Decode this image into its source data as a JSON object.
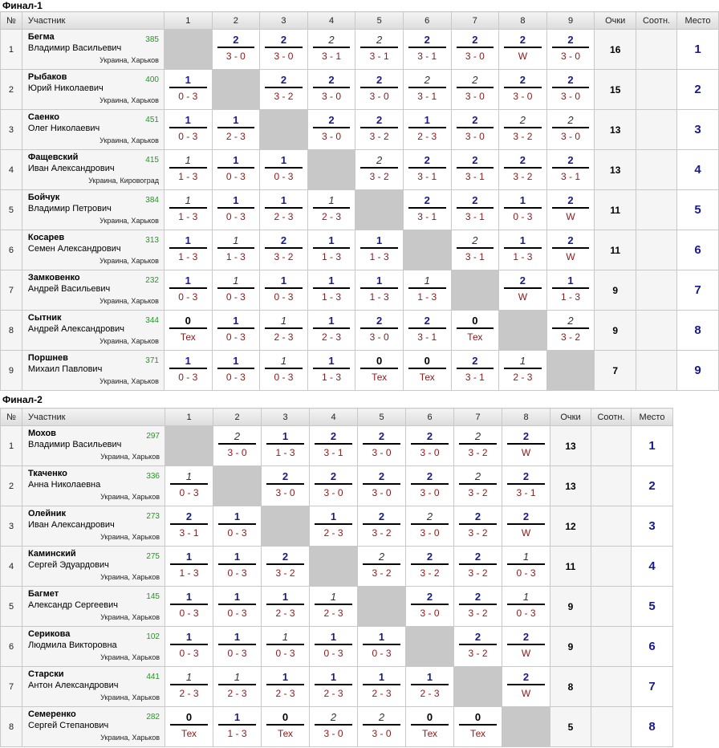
{
  "tables": [
    {
      "title": "Финал-1",
      "headers": {
        "num": "№",
        "participant": "Участник",
        "points": "Очки",
        "ratio": "Соотн.",
        "place": "Место"
      },
      "columns": [
        "1",
        "2",
        "3",
        "4",
        "5",
        "6",
        "7",
        "8",
        "9"
      ],
      "players": [
        {
          "num": "1",
          "last": "Бегма",
          "first": "Владимир Васильевич",
          "rating": "385",
          "city": "Украина, Харьков",
          "points": "16",
          "place": "1",
          "results": [
            null,
            [
              "2",
              "3 - 0",
              0
            ],
            [
              "2",
              "3 - 0",
              0
            ],
            [
              "2",
              "3 - 1",
              1
            ],
            [
              "2",
              "3 - 1",
              1
            ],
            [
              "2",
              "3 - 1",
              0
            ],
            [
              "2",
              "3 - 0",
              0
            ],
            [
              "2",
              "W",
              0
            ],
            [
              "2",
              "3 - 0",
              0
            ]
          ]
        },
        {
          "num": "2",
          "last": "Рыбаков",
          "first": "Юрий Николаевич",
          "rating": "400",
          "city": "Украина, Харьков",
          "points": "15",
          "place": "2",
          "results": [
            [
              "1",
              "0 - 3",
              0
            ],
            null,
            [
              "2",
              "3 - 2",
              0
            ],
            [
              "2",
              "3 - 0",
              0
            ],
            [
              "2",
              "3 - 0",
              0
            ],
            [
              "2",
              "3 - 1",
              1
            ],
            [
              "2",
              "3 - 0",
              1
            ],
            [
              "2",
              "3 - 0",
              0
            ],
            [
              "2",
              "3 - 0",
              0
            ]
          ]
        },
        {
          "num": "3",
          "last": "Саенко",
          "first": "Олег Николаевич",
          "rating": "451",
          "city": "Украина, Харьков",
          "points": "13",
          "place": "3",
          "results": [
            [
              "1",
              "0 - 3",
              0
            ],
            [
              "1",
              "2 - 3",
              0
            ],
            null,
            [
              "2",
              "3 - 0",
              0
            ],
            [
              "2",
              "3 - 2",
              0
            ],
            [
              "1",
              "2 - 3",
              0
            ],
            [
              "2",
              "3 - 0",
              0
            ],
            [
              "2",
              "3 - 2",
              1
            ],
            [
              "2",
              "3 - 0",
              1
            ]
          ]
        },
        {
          "num": "4",
          "last": "Фащевский",
          "first": "Иван Александрович",
          "rating": "415",
          "city": "Украина, Кировоград",
          "points": "13",
          "place": "4",
          "results": [
            [
              "1",
              "1 - 3",
              1
            ],
            [
              "1",
              "0 - 3",
              0
            ],
            [
              "1",
              "0 - 3",
              0
            ],
            null,
            [
              "2",
              "3 - 2",
              1
            ],
            [
              "2",
              "3 - 1",
              0
            ],
            [
              "2",
              "3 - 1",
              0
            ],
            [
              "2",
              "3 - 2",
              0
            ],
            [
              "2",
              "3 - 1",
              0
            ]
          ]
        },
        {
          "num": "5",
          "last": "Бойчук",
          "first": "Владимир Петрович",
          "rating": "384",
          "city": "Украина, Харьков",
          "points": "11",
          "place": "5",
          "results": [
            [
              "1",
              "1 - 3",
              1
            ],
            [
              "1",
              "0 - 3",
              0
            ],
            [
              "1",
              "2 - 3",
              0
            ],
            [
              "1",
              "2 - 3",
              1
            ],
            null,
            [
              "2",
              "3 - 1",
              0
            ],
            [
              "2",
              "3 - 1",
              0
            ],
            [
              "1",
              "0 - 3",
              0
            ],
            [
              "2",
              "W",
              0
            ]
          ]
        },
        {
          "num": "6",
          "last": "Косарев",
          "first": "Семен Александрович",
          "rating": "313",
          "city": "Украина, Харьков",
          "points": "11",
          "place": "6",
          "results": [
            [
              "1",
              "1 - 3",
              0
            ],
            [
              "1",
              "1 - 3",
              1
            ],
            [
              "2",
              "3 - 2",
              0
            ],
            [
              "1",
              "1 - 3",
              0
            ],
            [
              "1",
              "1 - 3",
              0
            ],
            null,
            [
              "2",
              "3 - 1",
              1
            ],
            [
              "1",
              "1 - 3",
              0
            ],
            [
              "2",
              "W",
              0
            ]
          ]
        },
        {
          "num": "7",
          "last": "Замковенко",
          "first": "Андрей Васильевич",
          "rating": "232",
          "city": "Украина, Харьков",
          "points": "9",
          "place": "7",
          "results": [
            [
              "1",
              "0 - 3",
              0
            ],
            [
              "1",
              "0 - 3",
              1
            ],
            [
              "1",
              "0 - 3",
              0
            ],
            [
              "1",
              "1 - 3",
              0
            ],
            [
              "1",
              "1 - 3",
              0
            ],
            [
              "1",
              "1 - 3",
              1
            ],
            null,
            [
              "2",
              "W",
              0
            ],
            [
              "1",
              "1 - 3",
              0
            ]
          ]
        },
        {
          "num": "8",
          "last": "Сытник",
          "first": "Андрей Александрович",
          "rating": "344",
          "city": "Украина, Харьков",
          "points": "9",
          "place": "8",
          "results": [
            [
              "0",
              "Тех",
              0
            ],
            [
              "1",
              "0 - 3",
              0
            ],
            [
              "1",
              "2 - 3",
              1
            ],
            [
              "1",
              "2 - 3",
              0
            ],
            [
              "2",
              "3 - 0",
              0
            ],
            [
              "2",
              "3 - 1",
              0
            ],
            [
              "0",
              "Тех",
              0
            ],
            null,
            [
              "2",
              "3 - 2",
              1
            ]
          ]
        },
        {
          "num": "9",
          "last": "Поршнев",
          "first": "Михаил Павлович",
          "rating": "371",
          "city": "Украина, Харьков",
          "points": "7",
          "place": "9",
          "results": [
            [
              "1",
              "0 - 3",
              0
            ],
            [
              "1",
              "0 - 3",
              0
            ],
            [
              "1",
              "0 - 3",
              1
            ],
            [
              "1",
              "1 - 3",
              0
            ],
            [
              "0",
              "Тех",
              0
            ],
            [
              "0",
              "Тех",
              0
            ],
            [
              "2",
              "3 - 1",
              0
            ],
            [
              "1",
              "2 - 3",
              1
            ],
            null
          ]
        }
      ]
    },
    {
      "title": "Финал-2",
      "headers": {
        "num": "№",
        "participant": "Участник",
        "points": "Очки",
        "ratio": "Соотн.",
        "place": "Место"
      },
      "columns": [
        "1",
        "2",
        "3",
        "4",
        "5",
        "6",
        "7",
        "8"
      ],
      "players": [
        {
          "num": "1",
          "last": "Мохов",
          "first": "Владимир Васильевич",
          "rating": "297",
          "city": "Украина, Харьков",
          "points": "13",
          "place": "1",
          "results": [
            null,
            [
              "2",
              "3 - 0",
              1
            ],
            [
              "1",
              "1 - 3",
              0
            ],
            [
              "2",
              "3 - 1",
              0
            ],
            [
              "2",
              "3 - 0",
              0
            ],
            [
              "2",
              "3 - 0",
              0
            ],
            [
              "2",
              "3 - 2",
              1
            ],
            [
              "2",
              "W",
              0
            ]
          ]
        },
        {
          "num": "2",
          "last": "Ткаченко",
          "first": "Анна Николаевна",
          "rating": "336",
          "city": "Украина, Харьков",
          "points": "13",
          "place": "2",
          "results": [
            [
              "1",
              "0 - 3",
              1
            ],
            null,
            [
              "2",
              "3 - 0",
              0
            ],
            [
              "2",
              "3 - 0",
              0
            ],
            [
              "2",
              "3 - 0",
              0
            ],
            [
              "2",
              "3 - 0",
              0
            ],
            [
              "2",
              "3 - 2",
              1
            ],
            [
              "2",
              "3 - 1",
              0
            ]
          ]
        },
        {
          "num": "3",
          "last": "Олейник",
          "first": "Иван Александрович",
          "rating": "273",
          "city": "Украина, Харьков",
          "points": "12",
          "place": "3",
          "results": [
            [
              "2",
              "3 - 1",
              0
            ],
            [
              "1",
              "0 - 3",
              0
            ],
            null,
            [
              "1",
              "2 - 3",
              0
            ],
            [
              "2",
              "3 - 2",
              0
            ],
            [
              "2",
              "3 - 0",
              1
            ],
            [
              "2",
              "3 - 2",
              0
            ],
            [
              "2",
              "W",
              0
            ]
          ]
        },
        {
          "num": "4",
          "last": "Каминский",
          "first": "Сергей Эдуардович",
          "rating": "275",
          "city": "Украина, Харьков",
          "points": "11",
          "place": "4",
          "results": [
            [
              "1",
              "1 - 3",
              0
            ],
            [
              "1",
              "0 - 3",
              0
            ],
            [
              "2",
              "3 - 2",
              0
            ],
            null,
            [
              "2",
              "3 - 2",
              1
            ],
            [
              "2",
              "3 - 2",
              0
            ],
            [
              "2",
              "3 - 2",
              0
            ],
            [
              "1",
              "0 - 3",
              1
            ]
          ]
        },
        {
          "num": "5",
          "last": "Багмет",
          "first": "Александр Сергеевич",
          "rating": "145",
          "city": "Украина, Харьков",
          "points": "9",
          "place": "5",
          "results": [
            [
              "1",
              "0 - 3",
              0
            ],
            [
              "1",
              "0 - 3",
              0
            ],
            [
              "1",
              "2 - 3",
              0
            ],
            [
              "1",
              "2 - 3",
              1
            ],
            null,
            [
              "2",
              "3 - 0",
              0
            ],
            [
              "2",
              "3 - 2",
              0
            ],
            [
              "1",
              "0 - 3",
              1
            ]
          ]
        },
        {
          "num": "6",
          "last": "Серикова",
          "first": "Людмила Викторовна",
          "rating": "102",
          "city": "Украина, Харьков",
          "points": "9",
          "place": "6",
          "results": [
            [
              "1",
              "0 - 3",
              0
            ],
            [
              "1",
              "0 - 3",
              0
            ],
            [
              "1",
              "0 - 3",
              1
            ],
            [
              "1",
              "0 - 3",
              0
            ],
            [
              "1",
              "0 - 3",
              0
            ],
            null,
            [
              "2",
              "3 - 2",
              0
            ],
            [
              "2",
              "W",
              0
            ]
          ]
        },
        {
          "num": "7",
          "last": "Старски",
          "first": "Антон Александрович",
          "rating": "441",
          "city": "Украина, Харьков",
          "points": "8",
          "place": "7",
          "results": [
            [
              "1",
              "2 - 3",
              1
            ],
            [
              "1",
              "2 - 3",
              1
            ],
            [
              "1",
              "2 - 3",
              0
            ],
            [
              "1",
              "2 - 3",
              0
            ],
            [
              "1",
              "2 - 3",
              0
            ],
            [
              "1",
              "2 - 3",
              0
            ],
            null,
            [
              "2",
              "W",
              0
            ]
          ]
        },
        {
          "num": "8",
          "last": "Семеренко",
          "first": "Сергей Степанович",
          "rating": "282",
          "city": "Украина, Харьков",
          "points": "5",
          "place": "8",
          "results": [
            [
              "0",
              "Тех",
              0
            ],
            [
              "1",
              "1 - 3",
              0
            ],
            [
              "0",
              "Тех",
              0
            ],
            [
              "2",
              "3 - 0",
              1
            ],
            [
              "2",
              "3 - 0",
              1
            ],
            [
              "0",
              "Тех",
              0
            ],
            [
              "0",
              "Тех",
              0
            ],
            null
          ]
        }
      ]
    }
  ]
}
